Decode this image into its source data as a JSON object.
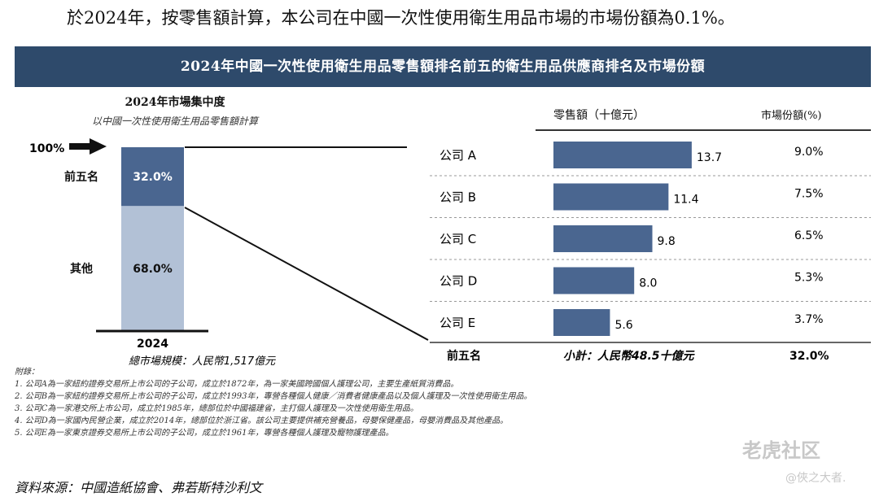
{
  "intro": "於2024年，按零售額計算，本公司在中國一次性使用衛生用品市場的市場份額為0.1%。",
  "banner_title": "2024年中國一次性使用衛生用品零售額排名前五的衛生用品供應商排名及市場份額",
  "left_title": "2024年市場集中度",
  "left_subtitle": "以中國一次性使用衛生用品零售額計算",
  "hundred_label": "100%",
  "header_sales": "零售額（十億元）",
  "header_share": "市場份額(%)",
  "footer": {
    "top_five": "前五名",
    "subtotal": "小計：人民幣48.5十億元",
    "total_share": "32.0%"
  },
  "notes_title": "附錄：",
  "notes": [
    "1.    公司A為一家紐約證券交易所上市公司的子公司，成立於1872年，為一家美國跨國個人護理公司，主要生產紙質消費品。",
    "2.    公司B為一家紐約證券交易所上市公司的子公司，成立於1993年，專營各種個人健康／消費者健康產品以及個人護理及一次性使用衛生用品。",
    "3.    公司C為一家港交所上市公司，成立於1985年，總部位於中國福建省，主打個人護理及一次性使用衛生用品。",
    "4.    公司D為一家國內民營企業，成立於2014年，總部位於浙江省。該公司主要提供補充營養品，母嬰保健產品，母嬰消費品及其他產品。",
    "5.    公司E為一家東京證券交易所上市公司的子公司，成立於1961年，專營各種個人護理及寵物護理產品。"
  ],
  "source": "資料來源：中國造紙協會、弗若斯特沙利文",
  "watermark": {
    "brand": "老虎社区",
    "user": "@俠之大者."
  },
  "colors": {
    "banner": "#2e4a6b",
    "dark_bar": "#4a6690",
    "light_bar": "#b2c1d6"
  },
  "chart_data": [
    {
      "type": "bar",
      "stacked": true,
      "title": "2024年市場集中度",
      "subtitle": "以中國一次性使用衛生用品零售額計算",
      "categories": [
        "2024"
      ],
      "series": [
        {
          "name": "前五名",
          "values": [
            32.0
          ],
          "label": "32.0%"
        },
        {
          "name": "其他",
          "values": [
            68.0
          ],
          "label": "68.0%"
        }
      ],
      "caption": "總市場規模：人民幣1,517億元",
      "ylim": [
        0,
        100
      ]
    },
    {
      "type": "bar",
      "orientation": "horizontal",
      "categories": [
        "公司 A",
        "公司 B",
        "公司 C",
        "公司 D",
        "公司 E"
      ],
      "values": [
        13.7,
        11.4,
        9.8,
        8.0,
        5.6
      ],
      "value_labels": [
        "13.7",
        "11.4",
        "9.8",
        "8.0",
        "5.6"
      ],
      "shares": [
        "9.0%",
        "7.5%",
        "6.5%",
        "5.3%",
        "3.7%"
      ],
      "xlabel": "零售額（十億元）",
      "xlim": [
        0,
        20
      ]
    }
  ]
}
